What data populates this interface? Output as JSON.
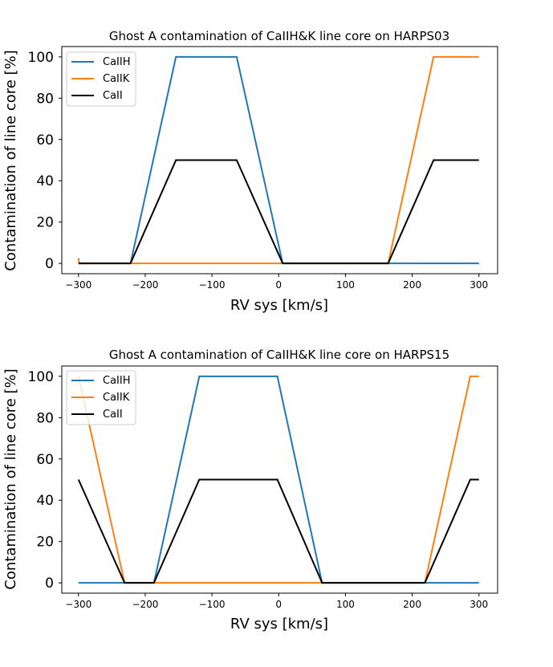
{
  "chart_data": [
    {
      "type": "line",
      "title": "Ghost A contamination of CaIIH&K line core on HARPS03",
      "xlabel": "RV sys [km/s]",
      "ylabel": "Contamination of line core [%]",
      "xlim": [
        -325,
        328
      ],
      "ylim": [
        -5,
        105
      ],
      "xticks": [
        -300,
        -200,
        -100,
        0,
        100,
        200,
        300
      ],
      "xtick_labels": [
        "−300",
        "−200",
        "−100",
        "0",
        "100",
        "200",
        "300"
      ],
      "yticks": [
        0,
        20,
        40,
        60,
        80,
        100
      ],
      "ytick_labels": [
        "0",
        "20",
        "40",
        "60",
        "80",
        "100"
      ],
      "legend_position": "upper-left",
      "series": [
        {
          "name": "CaIIH",
          "color": "#1f77b4",
          "x": [
            -300,
            -222,
            -154,
            -63,
            6,
            300
          ],
          "y": [
            0,
            0,
            100,
            100,
            0,
            0
          ]
        },
        {
          "name": "CaIIK",
          "color": "#ff7f0e",
          "x": [
            -300,
            -299,
            -222,
            6,
            164,
            232,
            300
          ],
          "y": [
            2.5,
            0,
            0,
            0,
            0,
            100,
            100
          ]
        },
        {
          "name": "CaII",
          "color": "#000000",
          "x": [
            -300,
            -222,
            -154,
            -63,
            6,
            164,
            232,
            300
          ],
          "y": [
            0,
            0,
            50,
            50,
            0,
            0,
            50,
            50
          ]
        }
      ]
    },
    {
      "type": "line",
      "title": "Ghost A contamination of CaIIH&K line core on HARPS15",
      "xlabel": "RV sys [km/s]",
      "ylabel": "Contamination of line core [%]",
      "xlim": [
        -325,
        328
      ],
      "ylim": [
        -5,
        105
      ],
      "xticks": [
        -300,
        -200,
        -100,
        0,
        100,
        200,
        300
      ],
      "xtick_labels": [
        "−300",
        "−200",
        "−100",
        "0",
        "100",
        "200",
        "300"
      ],
      "yticks": [
        0,
        20,
        40,
        60,
        80,
        100
      ],
      "ytick_labels": [
        "0",
        "20",
        "40",
        "60",
        "80",
        "100"
      ],
      "legend_position": "upper-left",
      "series": [
        {
          "name": "CaIIH",
          "color": "#1f77b4",
          "x": [
            -300,
            -187,
            -119,
            -2,
            65,
            300
          ],
          "y": [
            0,
            0,
            100,
            100,
            0,
            0
          ]
        },
        {
          "name": "CaIIK",
          "color": "#ff7f0e",
          "x": [
            -300,
            -231,
            219,
            287,
            300
          ],
          "y": [
            100,
            0,
            0,
            100,
            100
          ]
        },
        {
          "name": "CaII",
          "color": "#000000",
          "x": [
            -300,
            -231,
            -187,
            -119,
            -2,
            65,
            219,
            287,
            300
          ],
          "y": [
            50,
            0,
            0,
            50,
            50,
            0,
            0,
            50,
            50
          ]
        }
      ]
    }
  ]
}
